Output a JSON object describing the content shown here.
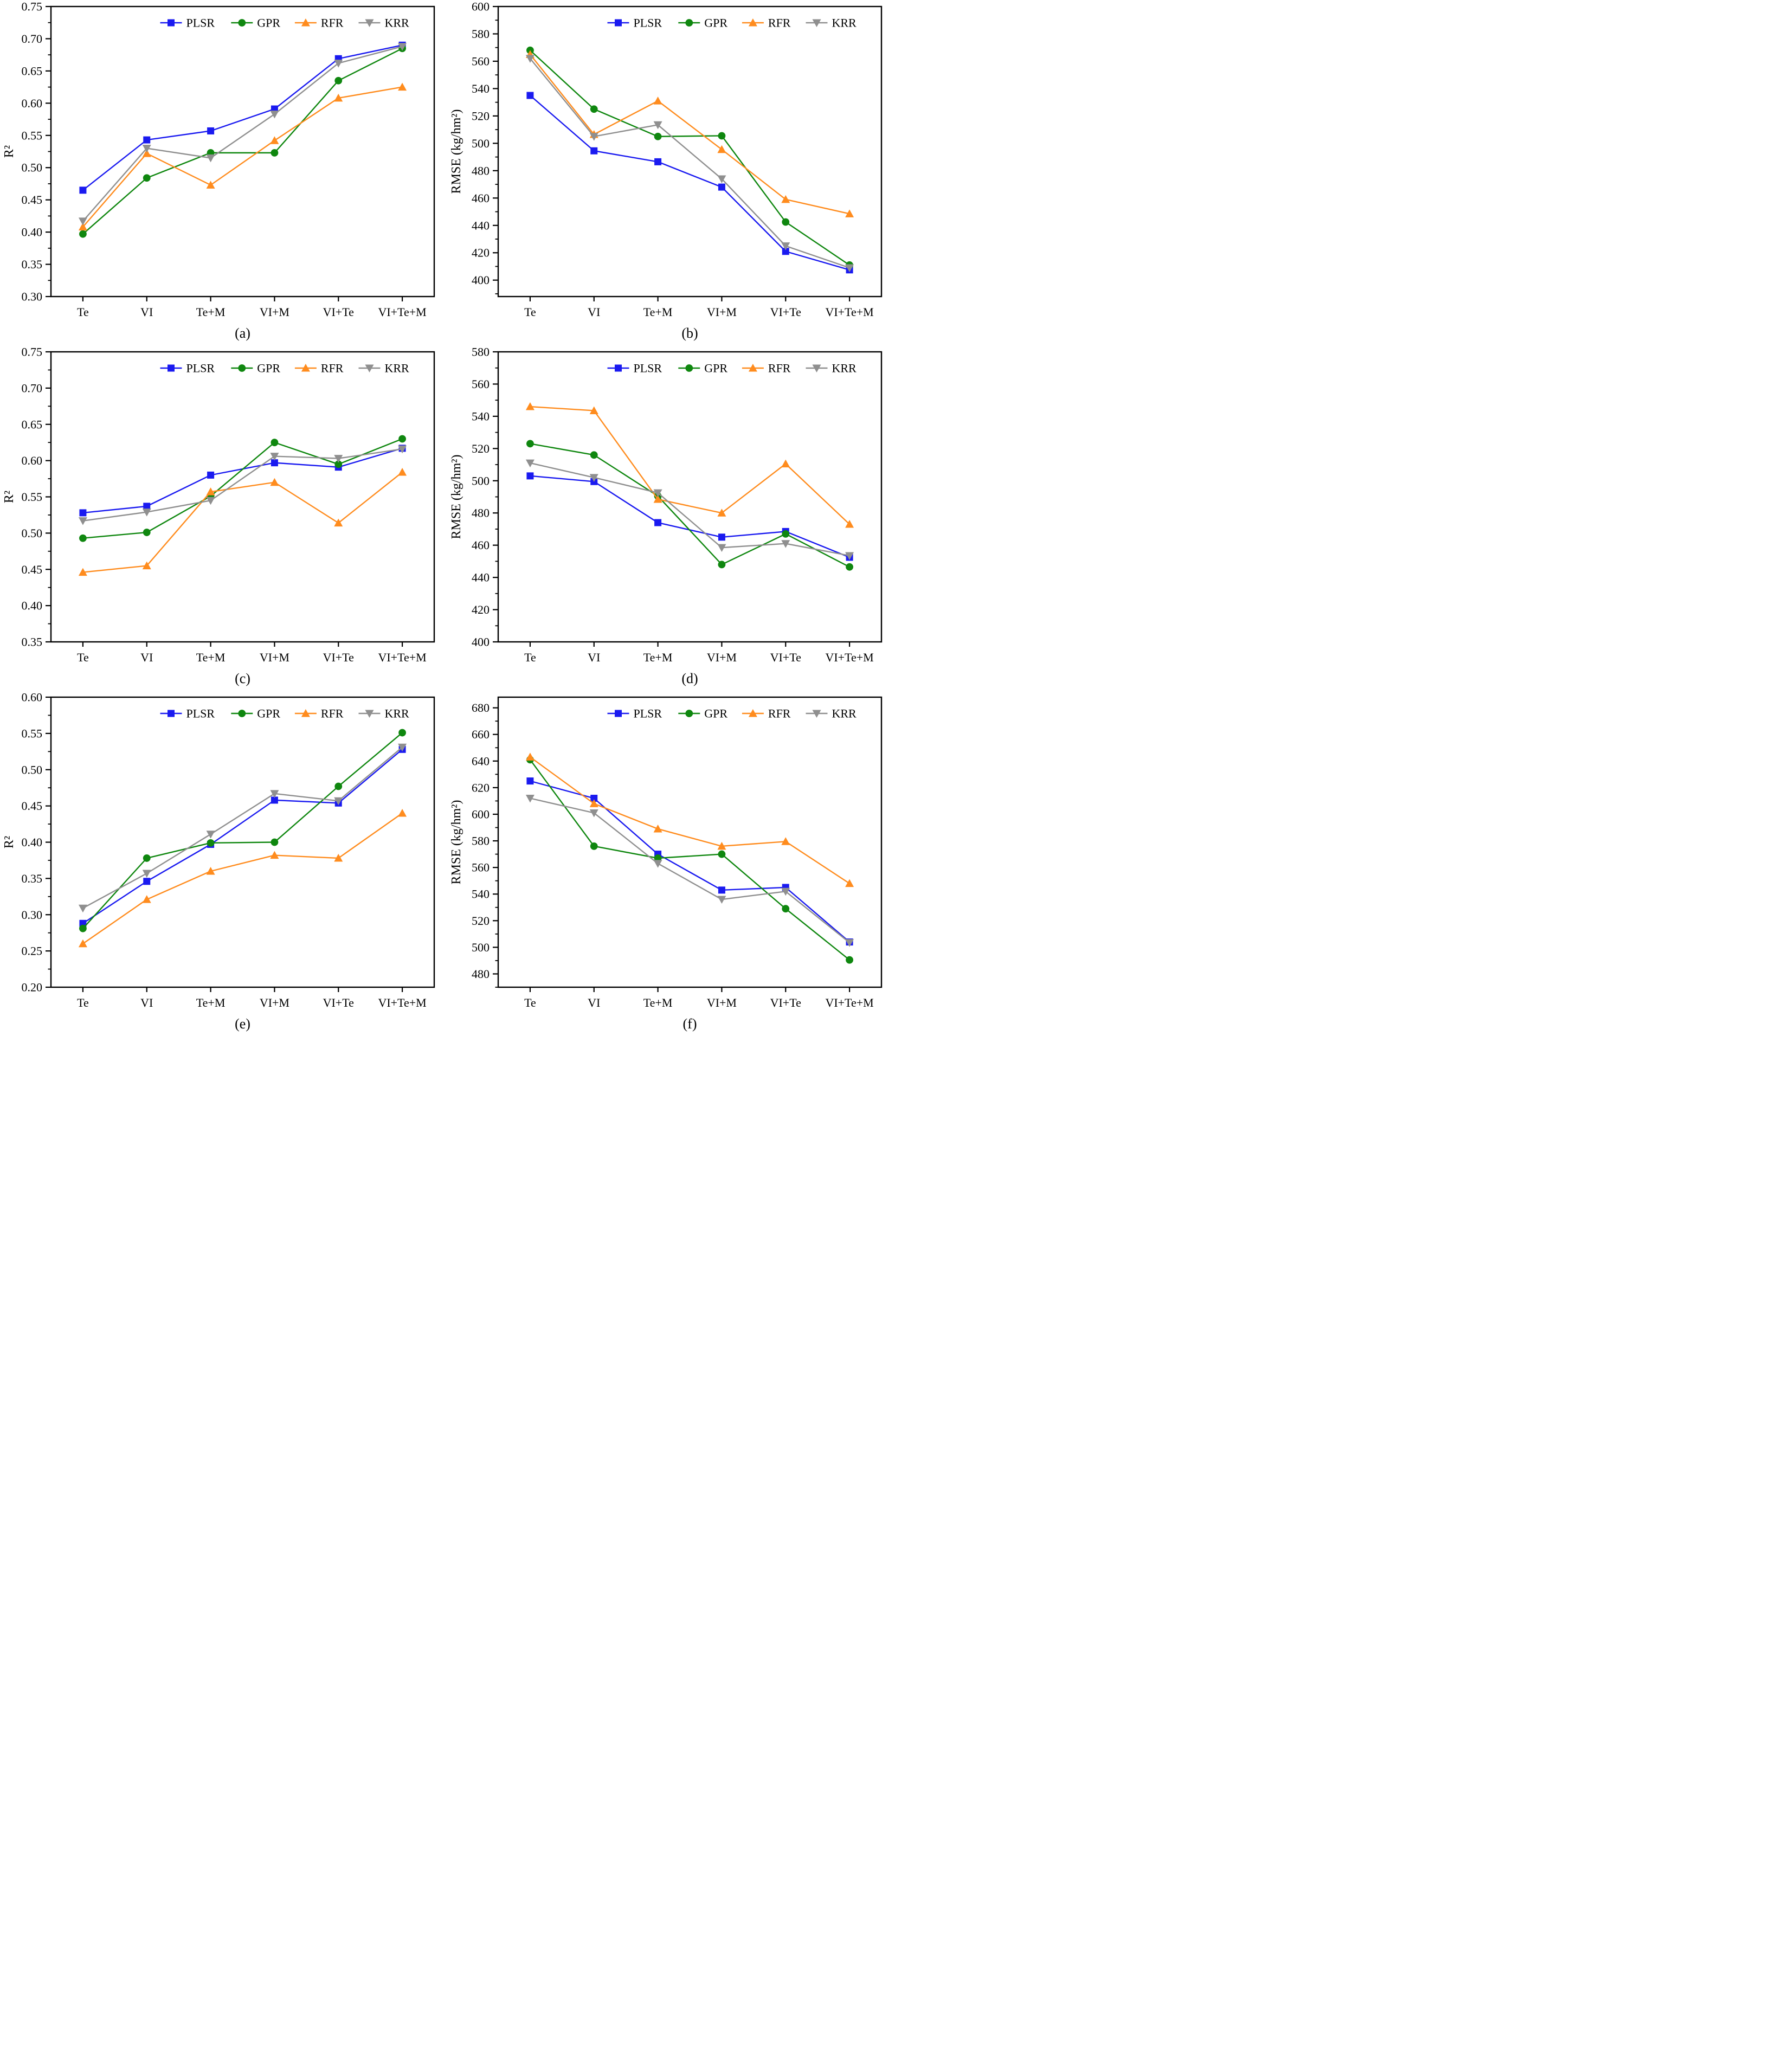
{
  "figure": {
    "categories": [
      "Te",
      "VI",
      "Te+M",
      "VI+M",
      "VI+Te",
      "VI+Te+M"
    ],
    "legend_entries": [
      "PLSR",
      "GPR",
      "RFR",
      "KRR"
    ],
    "colors": {
      "PLSR": "#1a1af0",
      "GPR": "#0f870f",
      "RFR": "#ff8c1e",
      "KRR": "#8f8f8f"
    },
    "markers": {
      "PLSR": "square",
      "GPR": "circle",
      "RFR": "triangle-up",
      "KRR": "triangle-down"
    }
  },
  "chart_data": [
    {
      "type": "line",
      "panel": "(a)",
      "ylabel": "R²",
      "xlabel": "",
      "ylim": [
        0.3,
        0.75
      ],
      "ytick_start": 0.3,
      "ytick_step": 0.05,
      "ytick_decimals": 2,
      "grid": false,
      "legend_position": "top-inside",
      "categories": [
        "Te",
        "VI",
        "Te+M",
        "VI+M",
        "VI+Te",
        "VI+Te+M"
      ],
      "series": [
        {
          "name": "PLSR",
          "values": [
            0.465,
            0.543,
            0.557,
            0.591,
            0.669,
            0.69
          ]
        },
        {
          "name": "GPR",
          "values": [
            0.397,
            0.484,
            0.523,
            0.523,
            0.635,
            0.685
          ]
        },
        {
          "name": "RFR",
          "values": [
            0.408,
            0.522,
            0.473,
            0.542,
            0.608,
            0.625
          ]
        },
        {
          "name": "KRR",
          "values": [
            0.417,
            0.53,
            0.515,
            0.583,
            0.662,
            0.688
          ]
        }
      ]
    },
    {
      "type": "line",
      "panel": "(b)",
      "ylabel": "RMSE（kg/hm²）",
      "xlabel": "",
      "ylim": [
        388,
        600
      ],
      "ytick_start": 400,
      "ytick_step": 20,
      "ytick_decimals": 0,
      "grid": false,
      "legend_position": "top-inside",
      "categories": [
        "Te",
        "VI",
        "Te+M",
        "VI+M",
        "VI+Te",
        "VI+Te+M"
      ],
      "series": [
        {
          "name": "PLSR",
          "values": [
            535,
            494.5,
            486.5,
            468,
            421,
            407.5
          ]
        },
        {
          "name": "GPR",
          "values": [
            568,
            525,
            505,
            505.5,
            442.5,
            411
          ]
        },
        {
          "name": "RFR",
          "values": [
            565,
            506.5,
            531,
            495.5,
            459,
            448.5
          ]
        },
        {
          "name": "KRR",
          "values": [
            562,
            505,
            513.5,
            474,
            425,
            409
          ]
        }
      ]
    },
    {
      "type": "line",
      "panel": "(c)",
      "ylabel": "R²",
      "xlabel": "",
      "ylim": [
        0.35,
        0.75
      ],
      "ytick_start": 0.35,
      "ytick_step": 0.05,
      "ytick_decimals": 2,
      "grid": false,
      "legend_position": "top-inside",
      "categories": [
        "Te",
        "VI",
        "Te+M",
        "VI+M",
        "VI+Te",
        "VI+Te+M"
      ],
      "series": [
        {
          "name": "PLSR",
          "values": [
            0.528,
            0.537,
            0.58,
            0.597,
            0.591,
            0.617
          ]
        },
        {
          "name": "GPR",
          "values": [
            0.493,
            0.501,
            0.551,
            0.625,
            0.595,
            0.63
          ]
        },
        {
          "name": "RFR",
          "values": [
            0.446,
            0.455,
            0.557,
            0.57,
            0.514,
            0.584
          ]
        },
        {
          "name": "KRR",
          "values": [
            0.517,
            0.529,
            0.545,
            0.606,
            0.603,
            0.616
          ]
        }
      ]
    },
    {
      "type": "line",
      "panel": "(d)",
      "ylabel": "RMSE（kg/hm²）",
      "xlabel": "",
      "ylim": [
        400,
        580
      ],
      "ytick_start": 400,
      "ytick_step": 20,
      "ytick_decimals": 0,
      "grid": false,
      "legend_position": "top-inside",
      "categories": [
        "Te",
        "VI",
        "Te+M",
        "VI+M",
        "VI+Te",
        "VI+Te+M"
      ],
      "series": [
        {
          "name": "PLSR",
          "values": [
            503,
            499.5,
            474,
            465,
            468.5,
            452.5
          ]
        },
        {
          "name": "GPR",
          "values": [
            523,
            516,
            490.5,
            448,
            467,
            446.5
          ]
        },
        {
          "name": "RFR",
          "values": [
            546,
            543.5,
            488.5,
            480,
            510.5,
            473
          ]
        },
        {
          "name": "KRR",
          "values": [
            511,
            502,
            492.5,
            458.5,
            461,
            453.5
          ]
        }
      ]
    },
    {
      "type": "line",
      "panel": "(e)",
      "ylabel": "R²",
      "xlabel": "",
      "ylim": [
        0.2,
        0.6
      ],
      "ytick_start": 0.2,
      "ytick_step": 0.05,
      "ytick_decimals": 2,
      "grid": false,
      "legend_position": "top-inside",
      "categories": [
        "Te",
        "VI",
        "Te+M",
        "VI+M",
        "VI+Te",
        "VI+Te+M"
      ],
      "series": [
        {
          "name": "PLSR",
          "values": [
            0.288,
            0.346,
            0.397,
            0.458,
            0.454,
            0.528
          ]
        },
        {
          "name": "GPR",
          "values": [
            0.281,
            0.378,
            0.399,
            0.4,
            0.477,
            0.551
          ]
        },
        {
          "name": "RFR",
          "values": [
            0.26,
            0.321,
            0.36,
            0.382,
            0.378,
            0.44
          ]
        },
        {
          "name": "KRR",
          "values": [
            0.309,
            0.357,
            0.411,
            0.467,
            0.457,
            0.531
          ]
        }
      ]
    },
    {
      "type": "line",
      "panel": "(f)",
      "ylabel": "RMSE（kg/hm²）",
      "xlabel": "",
      "ylim": [
        470,
        688
      ],
      "ytick_start": 480,
      "ytick_step": 20,
      "ytick_decimals": 0,
      "grid": false,
      "legend_position": "top-inside",
      "categories": [
        "Te",
        "VI",
        "Te+M",
        "VI+M",
        "VI+Te",
        "VI+Te+M"
      ],
      "series": [
        {
          "name": "PLSR",
          "values": [
            625,
            612,
            570,
            543,
            545,
            504
          ]
        },
        {
          "name": "GPR",
          "values": [
            641,
            576,
            567,
            570,
            529,
            490.5
          ]
        },
        {
          "name": "RFR",
          "values": [
            643,
            608,
            589,
            576,
            579.5,
            548
          ]
        },
        {
          "name": "KRR",
          "values": [
            612,
            601,
            563,
            536,
            542,
            503.5
          ]
        }
      ]
    }
  ]
}
